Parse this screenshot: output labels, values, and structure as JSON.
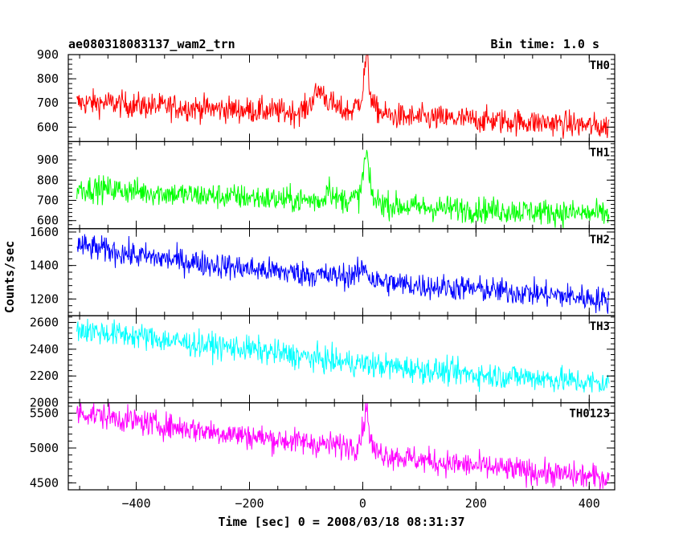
{
  "chart_data": {
    "type": "line",
    "title_left": "ae080318083137_wam2_trn",
    "title_right": "Bin time: 1.0 s",
    "xlabel": "Time [sec] 0 = 2008/03/18 08:31:37",
    "ylabel": "Counts/sec",
    "xlim": [
      -520,
      445
    ],
    "x_ticks": [
      -400,
      -200,
      0,
      200,
      400
    ],
    "x_tick_labels": [
      "−400",
      "−200",
      "0",
      "200",
      "400"
    ],
    "grid": false,
    "series": [
      {
        "name": "TH0",
        "color": "#ff0000",
        "ylim": [
          540,
          900
        ],
        "y_ticks": [
          600,
          700,
          800,
          900
        ],
        "x": [
          -505,
          -450,
          -400,
          -350,
          -300,
          -250,
          -200,
          -150,
          -120,
          -100,
          -85,
          -75,
          -60,
          -40,
          -20,
          -8,
          0,
          4,
          8,
          12,
          20,
          40,
          80,
          150,
          200,
          250,
          300,
          350,
          400,
          435
        ],
        "y": [
          700,
          700,
          690,
          685,
          680,
          675,
          670,
          665,
          660,
          675,
          730,
          755,
          705,
          670,
          665,
          700,
          740,
          860,
          880,
          760,
          680,
          650,
          640,
          635,
          630,
          625,
          620,
          615,
          605,
          600
        ]
      },
      {
        "name": "TH1",
        "color": "#00ff00",
        "ylim": [
          560,
          990
        ],
        "y_ticks": [
          600,
          700,
          800,
          900
        ],
        "x": [
          -505,
          -450,
          -400,
          -350,
          -300,
          -250,
          -200,
          -150,
          -100,
          -70,
          -60,
          -50,
          -20,
          -5,
          0,
          4,
          8,
          12,
          20,
          50,
          100,
          200,
          300,
          400,
          435
        ],
        "y": [
          760,
          755,
          745,
          735,
          725,
          720,
          715,
          705,
          700,
          700,
          780,
          705,
          705,
          720,
          820,
          900,
          930,
          780,
          700,
          675,
          665,
          655,
          645,
          635,
          630
        ]
      },
      {
        "name": "TH2",
        "color": "#0000ff",
        "ylim": [
          1100,
          1620
        ],
        "y_ticks": [
          1200,
          1400,
          1600
        ],
        "x": [
          -505,
          -450,
          -400,
          -350,
          -300,
          -250,
          -200,
          -150,
          -100,
          -50,
          -10,
          0,
          5,
          10,
          20,
          60,
          100,
          150,
          200,
          250,
          300,
          350,
          400,
          435
        ],
        "y": [
          1520,
          1490,
          1460,
          1440,
          1420,
          1400,
          1380,
          1365,
          1350,
          1335,
          1345,
          1380,
          1400,
          1340,
          1310,
          1290,
          1280,
          1270,
          1260,
          1245,
          1235,
          1220,
          1205,
          1190
        ]
      },
      {
        "name": "TH3",
        "color": "#00ffff",
        "ylim": [
          2000,
          2650
        ],
        "y_ticks": [
          2000,
          2200,
          2400,
          2600
        ],
        "x": [
          -505,
          -450,
          -400,
          -350,
          -300,
          -250,
          -200,
          -150,
          -100,
          -50,
          0,
          50,
          100,
          150,
          200,
          250,
          300,
          350,
          400,
          435
        ],
        "y": [
          2550,
          2520,
          2500,
          2470,
          2440,
          2420,
          2400,
          2370,
          2340,
          2310,
          2290,
          2270,
          2250,
          2230,
          2210,
          2200,
          2190,
          2170,
          2150,
          2140
        ]
      },
      {
        "name": "TH0123",
        "color": "#ff00ff",
        "ylim": [
          4400,
          5650
        ],
        "y_ticks": [
          4500,
          5000,
          5500
        ],
        "x": [
          -505,
          -450,
          -400,
          -350,
          -300,
          -250,
          -200,
          -150,
          -100,
          -50,
          -10,
          0,
          4,
          8,
          12,
          20,
          60,
          100,
          150,
          200,
          250,
          300,
          350,
          400,
          435
        ],
        "y": [
          5520,
          5450,
          5380,
          5320,
          5270,
          5220,
          5170,
          5120,
          5080,
          5040,
          5030,
          5250,
          5500,
          5600,
          5200,
          4950,
          4880,
          4830,
          4780,
          4740,
          4700,
          4660,
          4620,
          4590,
          4570
        ]
      }
    ]
  }
}
